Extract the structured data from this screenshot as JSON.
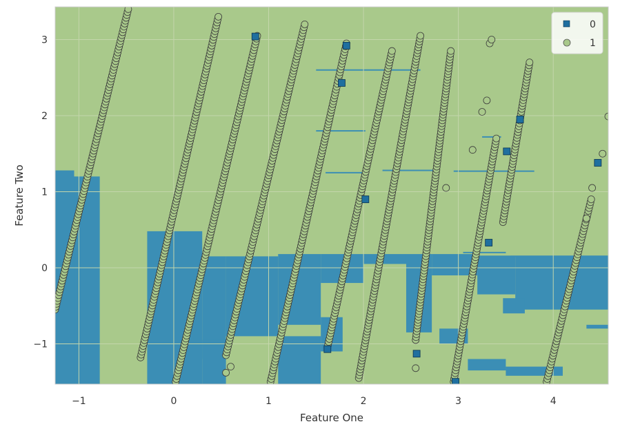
{
  "chart_data": {
    "type": "scatter",
    "xlabel": "Feature One",
    "ylabel": "Feature Two",
    "xlim": [
      -1.25,
      4.58
    ],
    "ylim": [
      -1.53,
      3.43
    ],
    "x_ticks": [
      -1,
      0,
      1,
      2,
      3,
      4
    ],
    "x_tick_labels": [
      "−1",
      "0",
      "1",
      "2",
      "3",
      "4"
    ],
    "y_ticks": [
      -1,
      0,
      1,
      2,
      3
    ],
    "y_tick_labels": [
      "−1",
      "0",
      "1",
      "2",
      "3"
    ],
    "grid": true,
    "legend_position": "top-right",
    "background_region_colors": {
      "class_1": "#a9c98b",
      "class_0": "#3b8eb5"
    },
    "series": [
      {
        "name": "0",
        "marker": "square",
        "color": "#1f6f9f",
        "points": [
          [
            0.86,
            3.04
          ],
          [
            1.82,
            2.92
          ],
          [
            1.77,
            2.43
          ],
          [
            2.02,
            0.9
          ],
          [
            1.62,
            -1.07
          ],
          [
            2.56,
            -1.13
          ],
          [
            3.51,
            1.53
          ],
          [
            3.65,
            1.95
          ],
          [
            4.47,
            1.38
          ],
          [
            3.32,
            0.33
          ],
          [
            2.97,
            -1.5
          ]
        ]
      },
      {
        "name": "1",
        "marker": "circle",
        "color": "#a9c98b",
        "strands": [
          {
            "x": [
              -1.25,
              -0.48
            ],
            "y": [
              -0.55,
              3.4
            ]
          },
          {
            "x": [
              -0.35,
              0.47
            ],
            "y": [
              -1.18,
              3.3
            ]
          },
          {
            "x": [
              0.02,
              0.88
            ],
            "y": [
              -1.5,
              3.05
            ]
          },
          {
            "x": [
              0.55,
              1.38
            ],
            "y": [
              -1.15,
              3.2
            ]
          },
          {
            "x": [
              1.02,
              1.82
            ],
            "y": [
              -1.5,
              2.95
            ]
          },
          {
            "x": [
              1.62,
              2.3
            ],
            "y": [
              -1.05,
              2.85
            ]
          },
          {
            "x": [
              1.95,
              2.6
            ],
            "y": [
              -1.45,
              3.05
            ]
          },
          {
            "x": [
              2.55,
              2.92
            ],
            "y": [
              -0.95,
              2.85
            ]
          },
          {
            "x": [
              2.95,
              3.4
            ],
            "y": [
              -1.5,
              1.7
            ]
          },
          {
            "x": [
              3.47,
              3.75
            ],
            "y": [
              0.6,
              2.7
            ]
          },
          {
            "x": [
              3.93,
              4.4
            ],
            "y": [
              -1.5,
              0.9
            ]
          }
        ],
        "extra_points": [
          [
            3.33,
            2.95
          ],
          [
            3.35,
            3.0
          ],
          [
            3.3,
            2.2
          ],
          [
            3.25,
            2.05
          ],
          [
            3.15,
            1.55
          ],
          [
            2.87,
            1.05
          ],
          [
            0.6,
            -1.3
          ],
          [
            0.55,
            -1.38
          ],
          [
            2.55,
            -1.32
          ],
          [
            4.52,
            1.5
          ],
          [
            4.41,
            1.05
          ],
          [
            4.35,
            0.65
          ],
          [
            4.58,
            1.99
          ]
        ]
      }
    ]
  }
}
